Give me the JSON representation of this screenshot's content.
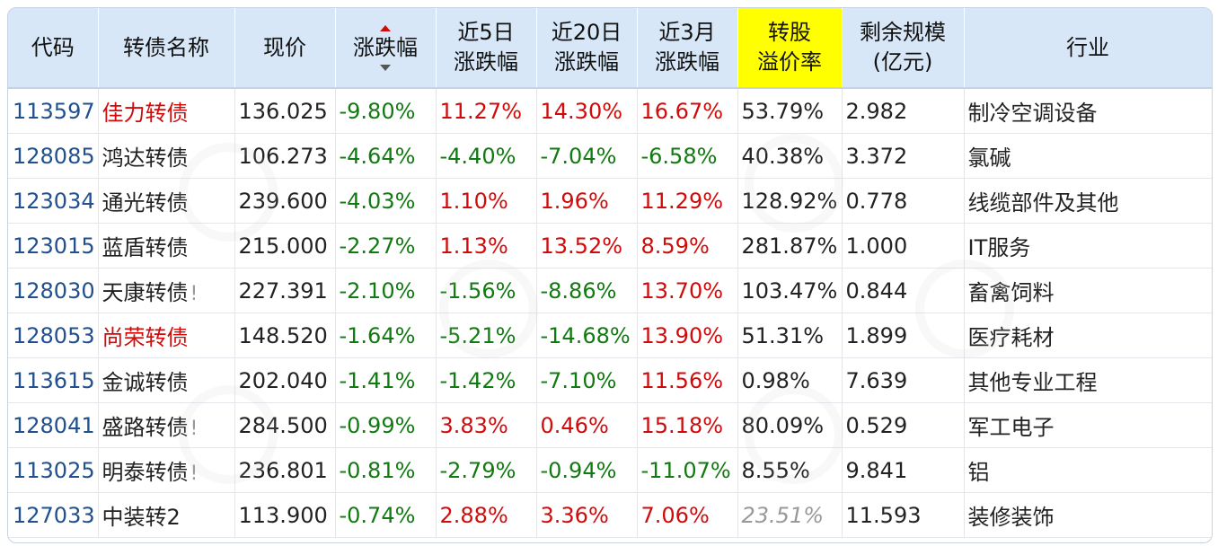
{
  "headers": {
    "code": "代码",
    "name": "转债名称",
    "price": "现价",
    "change": "涨跌幅",
    "d5_line1": "近5日",
    "d5_line2": "涨跌幅",
    "d20_line1": "近20日",
    "d20_line2": "涨跌幅",
    "m3_line1": "近3月",
    "m3_line2": "涨跌幅",
    "premium_line1": "转股",
    "premium_line2": "溢价率",
    "scale_line1": "剩余规模",
    "scale_line2": "(亿元)",
    "industry": "行业"
  },
  "rows": [
    {
      "code": "113597",
      "name": "佳力转债",
      "name_red": true,
      "flag": "",
      "price": "136.025",
      "change": "-9.80%",
      "d5": "11.27%",
      "d20": "14.30%",
      "m3": "16.67%",
      "premium": "53.79%",
      "premium_grey": false,
      "scale": "2.982",
      "industry": "制冷空调设备"
    },
    {
      "code": "128085",
      "name": "鸿达转债",
      "name_red": false,
      "flag": "",
      "price": "106.273",
      "change": "-4.64%",
      "d5": "-4.40%",
      "d20": "-7.04%",
      "m3": "-6.58%",
      "premium": "40.38%",
      "premium_grey": false,
      "scale": "3.372",
      "industry": "氯碱"
    },
    {
      "code": "123034",
      "name": "通光转债",
      "name_red": false,
      "flag": "",
      "price": "239.600",
      "change": "-4.03%",
      "d5": "1.10%",
      "d20": "1.96%",
      "m3": "11.29%",
      "premium": "128.92%",
      "premium_grey": false,
      "scale": "0.778",
      "industry": "线缆部件及其他"
    },
    {
      "code": "123015",
      "name": "蓝盾转债",
      "name_red": false,
      "flag": "",
      "price": "215.000",
      "change": "-2.27%",
      "d5": "1.13%",
      "d20": "13.52%",
      "m3": "8.59%",
      "premium": "281.87%",
      "premium_grey": false,
      "scale": "1.000",
      "industry": "IT服务"
    },
    {
      "code": "128030",
      "name": "天康转债",
      "name_red": false,
      "flag": "!",
      "price": "227.391",
      "change": "-2.10%",
      "d5": "-1.56%",
      "d20": "-8.86%",
      "m3": "13.70%",
      "premium": "103.47%",
      "premium_grey": false,
      "scale": "0.844",
      "industry": "畜禽饲料"
    },
    {
      "code": "128053",
      "name": "尚荣转债",
      "name_red": true,
      "flag": "",
      "price": "148.520",
      "change": "-1.64%",
      "d5": "-5.21%",
      "d20": "-14.68%",
      "m3": "13.90%",
      "premium": "51.31%",
      "premium_grey": false,
      "scale": "1.899",
      "industry": "医疗耗材"
    },
    {
      "code": "113615",
      "name": "金诚转债",
      "name_red": false,
      "flag": "",
      "price": "202.040",
      "change": "-1.41%",
      "d5": "-1.42%",
      "d20": "-7.10%",
      "m3": "11.56%",
      "premium": "0.98%",
      "premium_grey": false,
      "scale": "7.639",
      "industry": "其他专业工程"
    },
    {
      "code": "128041",
      "name": "盛路转债",
      "name_red": false,
      "flag": "!",
      "price": "284.500",
      "change": "-0.99%",
      "d5": "3.83%",
      "d20": "0.46%",
      "m3": "15.18%",
      "premium": "80.09%",
      "premium_grey": false,
      "scale": "0.529",
      "industry": "军工电子"
    },
    {
      "code": "113025",
      "name": "明泰转债",
      "name_red": false,
      "flag": "!",
      "price": "236.801",
      "change": "-0.81%",
      "d5": "-2.79%",
      "d20": "-0.94%",
      "m3": "-11.07%",
      "premium": "8.55%",
      "premium_grey": false,
      "scale": "9.841",
      "industry": "铝"
    },
    {
      "code": "127033",
      "name": "中装转2",
      "name_red": false,
      "flag": "",
      "price": "113.900",
      "change": "-0.74%",
      "d5": "2.88%",
      "d20": "3.36%",
      "m3": "7.06%",
      "premium": "23.51%",
      "premium_grey": true,
      "scale": "11.593",
      "industry": "装修装饰"
    }
  ],
  "colors": {
    "positive": "#d10a0a",
    "negative": "#117a11",
    "code": "#20508f",
    "header_bg": "#d7e7f7",
    "highlight_header": "#ffff00"
  }
}
